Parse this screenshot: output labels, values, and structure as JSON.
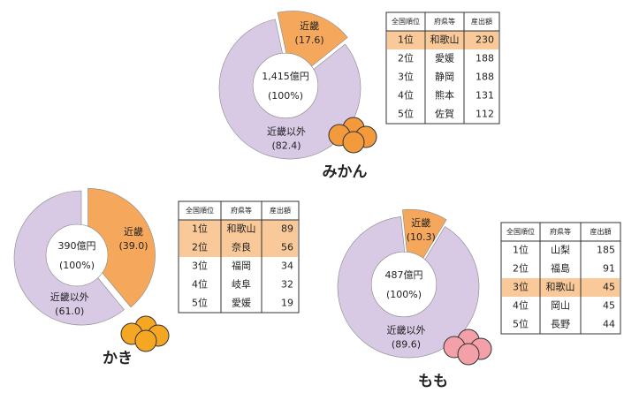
{
  "chart_data": [
    {
      "type": "pie",
      "title": "みかん",
      "categories": [
        "近畿",
        "近畿以外"
      ],
      "values": [
        17.6,
        82.4
      ],
      "value_labels": [
        "(17.6)",
        "(82.4)"
      ],
      "colors": [
        "#f5a85c",
        "#d8c9e4"
      ],
      "center_label": "1,415億円",
      "center_sublabel": "(100%)",
      "table": {
        "header": [
          "全国順位",
          "府県等",
          "産出額"
        ],
        "rows": [
          [
            "1位",
            "和歌山",
            230
          ],
          [
            "2位",
            "愛媛",
            188
          ],
          [
            "3位",
            "静岡",
            188
          ],
          [
            "4位",
            "熊本",
            131
          ],
          [
            "5位",
            "佐賀",
            112
          ]
        ],
        "highlight_rows": [
          0
        ]
      }
    },
    {
      "type": "pie",
      "title": "かき",
      "categories": [
        "近畿",
        "近畿以外"
      ],
      "values": [
        39.0,
        61.0
      ],
      "value_labels": [
        "(39.0)",
        "(61.0)"
      ],
      "colors": [
        "#f5a85c",
        "#d8c9e4"
      ],
      "center_label": "390億円",
      "center_sublabel": "(100%)",
      "table": {
        "header": [
          "全国順位",
          "府県等",
          "産出額"
        ],
        "rows": [
          [
            "1位",
            "和歌山",
            89
          ],
          [
            "2位",
            "奈良",
            56
          ],
          [
            "3位",
            "福岡",
            34
          ],
          [
            "4位",
            "岐阜",
            32
          ],
          [
            "5位",
            "愛媛",
            19
          ]
        ],
        "highlight_rows": [
          0,
          1
        ]
      }
    },
    {
      "type": "pie",
      "title": "もも",
      "categories": [
        "近畿",
        "近畿以外"
      ],
      "values": [
        10.3,
        89.6
      ],
      "value_labels": [
        "(10.3)",
        "(89.6)"
      ],
      "colors": [
        "#f5a85c",
        "#d8c9e4"
      ],
      "center_label": "487億円",
      "center_sublabel": "(100%)",
      "table": {
        "header": [
          "全国順位",
          "府県等",
          "産出額"
        ],
        "rows": [
          [
            "1位",
            "山梨",
            185
          ],
          [
            "2位",
            "福島",
            91
          ],
          [
            "3位",
            "和歌山",
            45
          ],
          [
            "4位",
            "岡山",
            45
          ],
          [
            "5位",
            "長野",
            44
          ]
        ],
        "highlight_rows": [
          2
        ]
      }
    }
  ]
}
